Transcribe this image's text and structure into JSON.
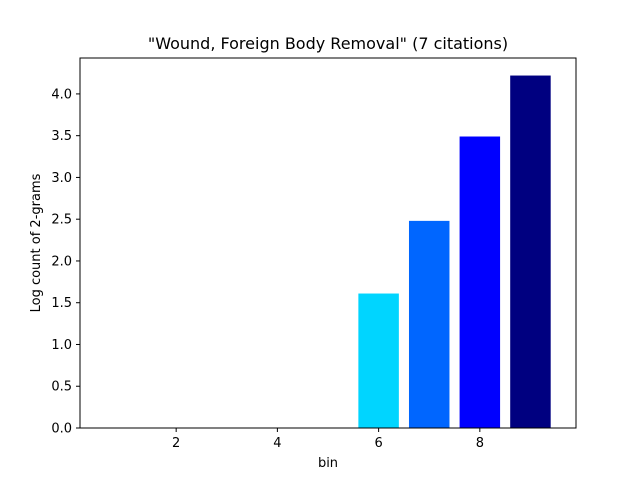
{
  "chart_data": {
    "type": "bar",
    "title": "\"Wound, Foreign Body Removal\" (7 citations)",
    "xlabel": "bin",
    "ylabel": "Log count of 2-grams",
    "x": [
      6,
      7,
      8,
      9
    ],
    "values": [
      1.61,
      2.48,
      3.49,
      4.22
    ],
    "colors": [
      "#00d5ff",
      "#0066ff",
      "#0000ff",
      "#000080"
    ],
    "xlim": [
      0.1,
      9.9
    ],
    "ylim": [
      0,
      4.43
    ],
    "xticks": [
      2,
      4,
      6,
      8
    ],
    "xtick_labels": [
      "2",
      "4",
      "6",
      "8"
    ],
    "yticks": [
      0.0,
      0.5,
      1.0,
      1.5,
      2.0,
      2.5,
      3.0,
      3.5,
      4.0
    ],
    "ytick_labels": [
      "0.0",
      "0.5",
      "1.0",
      "1.5",
      "2.0",
      "2.5",
      "3.0",
      "3.5",
      "4.0"
    ],
    "grid": false,
    "legend": "none"
  }
}
